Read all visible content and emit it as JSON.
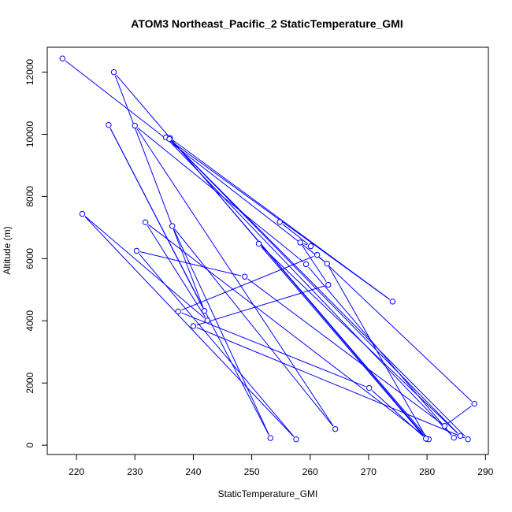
{
  "chart_data": {
    "type": "line",
    "title": "ATOM3 Northeast_Pacific_2 StaticTemperature_GMI",
    "xlabel": "StaticTemperature_GMI",
    "ylabel": "Altitude (m)",
    "xlim": [
      215,
      290.5
    ],
    "ylim": [
      -300,
      12800
    ],
    "xticks": [
      220,
      230,
      240,
      250,
      260,
      270,
      280,
      290
    ],
    "yticks": [
      0,
      2000,
      4000,
      6000,
      8000,
      10000,
      12000
    ],
    "grid": false,
    "legend": "none",
    "line_color": "#0000ff",
    "marker": "open-circle",
    "series": [
      {
        "x": [
          217.6,
          262.9,
          280.0,
          226.4,
          241.9,
          225.5,
          253.2,
          236.4,
          264.3,
          230.0,
          259.3,
          284.6,
          235.3,
          274.1,
          236.0,
          280.3,
          231.8,
          242.4,
          221.0,
          257.6,
          230.3,
          248.8,
          283.0,
          288.1,
          261.2,
          237.4,
          270.1,
          279.8,
          251.2,
          285.7,
          235.9,
          287.0,
          240.0,
          263.1,
          258.3,
          260.1,
          254.8
        ],
        "y": [
          12440,
          5840,
          200,
          12000,
          4320,
          10300,
          230,
          7050,
          520,
          10280,
          5820,
          240,
          9900,
          4620,
          9880,
          190,
          7170,
          4010,
          7440,
          190,
          6250,
          5420,
          620,
          1330,
          6120,
          4300,
          1840,
          210,
          6480,
          300,
          9850,
          190,
          3830,
          5160,
          6520,
          6400,
          7180
        ]
      }
    ]
  }
}
